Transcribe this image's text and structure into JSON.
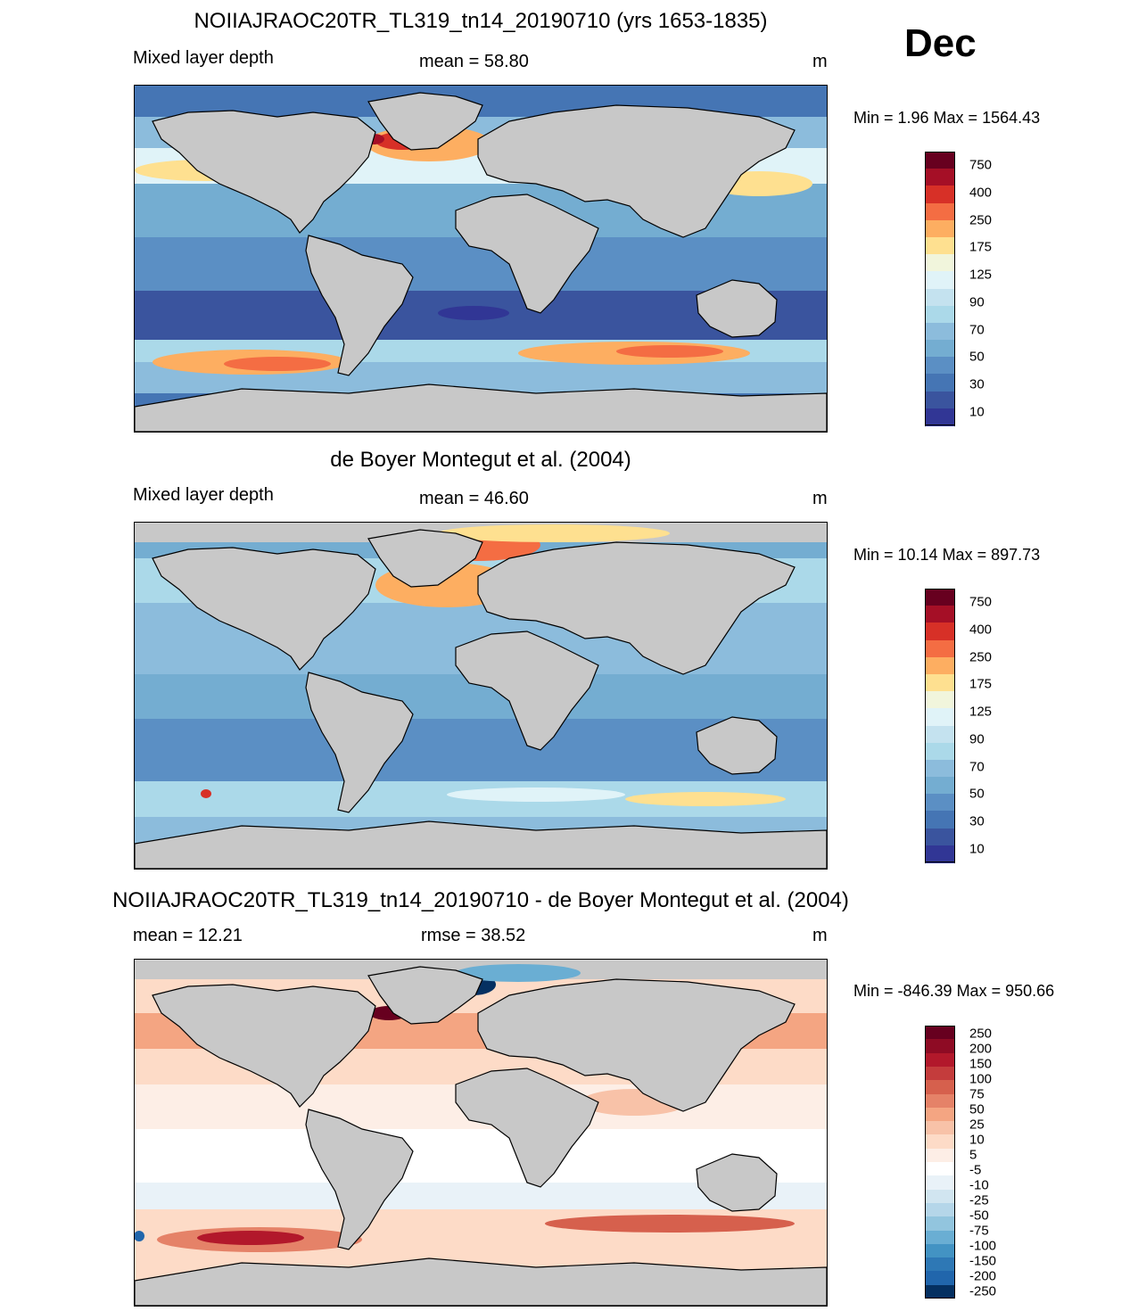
{
  "month_label": "Dec",
  "land_color": "#c8c8c8",
  "panels": [
    {
      "title": "NOIIAJRAOC20TR_TL319_tn14_20190710 (yrs 1653-1835)",
      "left_label": "Mixed layer depth",
      "center_label": "mean =  58.80",
      "units": "m",
      "minmax": "Min =   1.96 Max = 1564.43",
      "colorbar": {
        "labels": [
          "750",
          "400",
          "250",
          "175",
          "125",
          "90",
          "70",
          "50",
          "30",
          "10"
        ],
        "colors": [
          "#67001f",
          "#a50f26",
          "#d73027",
          "#f46d43",
          "#fdae61",
          "#fee090",
          "#f1f5dc",
          "#e0f3f8",
          "#c4e2ef",
          "#abd9e9",
          "#8cbcdc",
          "#74add1",
          "#5b8fc4",
          "#4575b4",
          "#3a549e",
          "#313695"
        ]
      }
    },
    {
      "title": "de Boyer Montegut et al. (2004)",
      "left_label": "Mixed layer depth",
      "center_label": "mean =  46.60",
      "units": "m",
      "minmax": "Min =  10.14 Max = 897.73",
      "colorbar": {
        "labels": [
          "750",
          "400",
          "250",
          "175",
          "125",
          "90",
          "70",
          "50",
          "30",
          "10"
        ],
        "colors": [
          "#67001f",
          "#a50f26",
          "#d73027",
          "#f46d43",
          "#fdae61",
          "#fee090",
          "#f1f5dc",
          "#e0f3f8",
          "#c4e2ef",
          "#abd9e9",
          "#8cbcdc",
          "#74add1",
          "#5b8fc4",
          "#4575b4",
          "#3a549e",
          "#313695"
        ]
      }
    },
    {
      "title": "NOIIAJRAOC20TR_TL319_tn14_20190710 - de Boyer Montegut et al. (2004)",
      "left_label": "mean =  12.21",
      "center_label": "rmse =  38.52",
      "units": "m",
      "minmax": "Min = -846.39 Max = 950.66",
      "colorbar": {
        "labels": [
          "250",
          "200",
          "150",
          "100",
          "75",
          "50",
          "25",
          "10",
          "5",
          "-5",
          "-10",
          "-25",
          "-50",
          "-75",
          "-100",
          "-150",
          "-200",
          "-250"
        ],
        "colors": [
          "#67001f",
          "#8e0b24",
          "#b2182b",
          "#c43c3c",
          "#d6604d",
          "#e58268",
          "#f4a582",
          "#f8c2a8",
          "#fddbc7",
          "#fdeee6",
          "#ffffff",
          "#e9f2f8",
          "#d1e5f0",
          "#b5d6e9",
          "#92c5de",
          "#6aaed3",
          "#4393c3",
          "#2e78b5",
          "#2166ac",
          "#053061"
        ]
      }
    }
  ]
}
